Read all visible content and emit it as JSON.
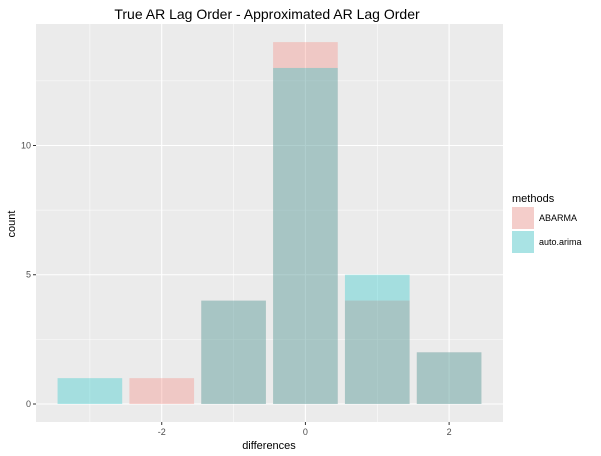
{
  "chart_data": {
    "type": "bar",
    "title": "True AR Lag Order - Approximated AR Lag Order",
    "xlabel": "differences",
    "ylabel": "count",
    "x_ticks": [
      "-2",
      "0",
      "2"
    ],
    "y_ticks": [
      "0",
      "5",
      "10"
    ],
    "xlim": [
      -3.75,
      2.75
    ],
    "ylim": [
      0,
      14.7
    ],
    "bar_width": 0.9,
    "grid": true,
    "legend": {
      "title": "methods",
      "position": "right",
      "entries": [
        "ABARMA",
        "auto.arima"
      ]
    },
    "series": [
      {
        "name": "ABARMA",
        "color": "#F8766D",
        "x": [
          -3,
          -2,
          -1,
          0,
          1,
          2
        ],
        "values": [
          0,
          1,
          4,
          14,
          4,
          2
        ]
      },
      {
        "name": "auto.arima",
        "color": "#00BFC4",
        "x": [
          -3,
          -2,
          -1,
          0,
          1,
          2
        ],
        "values": [
          1,
          0,
          4,
          13,
          5,
          2
        ]
      }
    ],
    "colors": {
      "panel_background": "#EBEBEB",
      "grid_major": "#FFFFFF",
      "opacity": 0.3
    }
  }
}
